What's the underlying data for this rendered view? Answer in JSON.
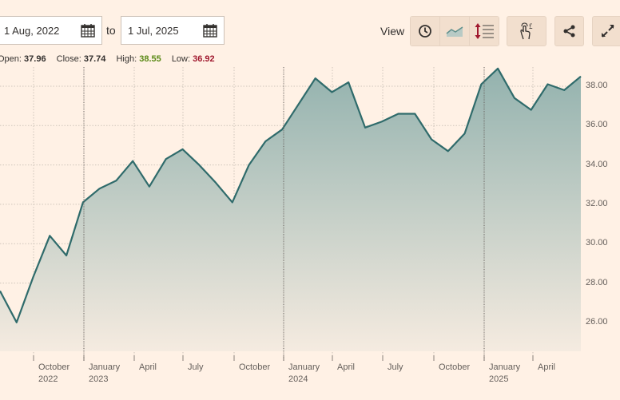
{
  "date_range": {
    "from": "1 Aug, 2022",
    "to_label": "to",
    "to": "1 Jul, 2025"
  },
  "toolbar": {
    "view_label": "View",
    "buttons": [
      {
        "icon": "clock-icon",
        "name": "time-range"
      },
      {
        "icon": "line-chart-icon",
        "name": "chart-type"
      },
      {
        "icon": "indicators-icon",
        "name": "indicators"
      },
      {
        "icon": "touch-currency-icon",
        "name": "interactive-mode"
      },
      {
        "icon": "share-icon",
        "name": "share"
      },
      {
        "icon": "expand-icon",
        "name": "fullscreen"
      }
    ]
  },
  "ohlc": {
    "open_label": "Open:",
    "open": "37.96",
    "close_label": "Close:",
    "close": "37.74",
    "high_label": "High:",
    "high": "38.55",
    "low_label": "Low:",
    "low": "36.92"
  },
  "colors": {
    "background": "#fff1e5",
    "line": "#2f6b6b",
    "fill_top": "#93b2ae",
    "high": "#5b8a17",
    "low": "#a0182e"
  },
  "chart_data": {
    "type": "area",
    "title": "",
    "xlabel": "",
    "ylabel": "",
    "ylim": [
      24.7,
      39.2
    ],
    "grid": true,
    "y_ticks": [
      "26.00",
      "28.00",
      "30.00",
      "32.00",
      "34.00",
      "36.00",
      "38.00"
    ],
    "x_ticks": [
      {
        "label": "October",
        "sub": "2022"
      },
      {
        "label": "January",
        "sub": "2023"
      },
      {
        "label": "April",
        "sub": ""
      },
      {
        "label": "July",
        "sub": ""
      },
      {
        "label": "October",
        "sub": ""
      },
      {
        "label": "January",
        "sub": "2024"
      },
      {
        "label": "April",
        "sub": ""
      },
      {
        "label": "July",
        "sub": ""
      },
      {
        "label": "October",
        "sub": ""
      },
      {
        "label": "January",
        "sub": "2025"
      },
      {
        "label": "April",
        "sub": ""
      }
    ],
    "x": [
      "2022-08",
      "2022-09",
      "2022-10",
      "2022-11",
      "2022-12",
      "2023-01",
      "2023-02",
      "2023-03",
      "2023-04",
      "2023-05",
      "2023-06",
      "2023-07",
      "2023-08",
      "2023-09",
      "2023-10",
      "2023-11",
      "2023-12",
      "2024-01",
      "2024-02",
      "2024-03",
      "2024-04",
      "2024-05",
      "2024-06",
      "2024-07",
      "2024-08",
      "2024-09",
      "2024-10",
      "2024-11",
      "2024-12",
      "2025-01",
      "2025-02",
      "2025-03",
      "2025-04",
      "2025-05",
      "2025-06",
      "2025-07"
    ],
    "values": [
      27.6,
      26.0,
      28.3,
      30.4,
      29.4,
      32.1,
      32.8,
      33.2,
      34.2,
      32.9,
      34.3,
      34.8,
      34.0,
      33.1,
      32.1,
      34.0,
      35.2,
      35.8,
      37.1,
      38.4,
      37.7,
      38.2,
      35.9,
      36.2,
      36.6,
      36.6,
      35.3,
      34.7,
      35.6,
      38.1,
      38.9,
      37.4,
      36.8,
      38.1,
      37.8,
      38.5
    ]
  }
}
